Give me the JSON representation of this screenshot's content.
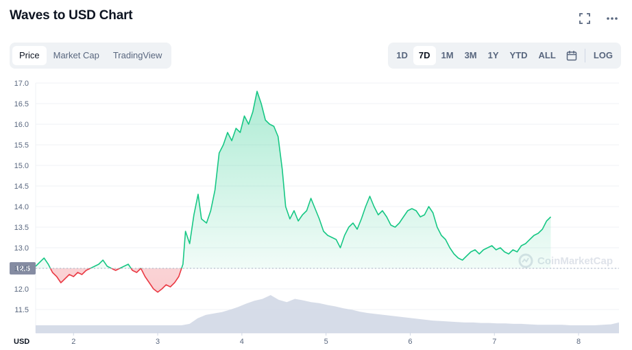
{
  "header": {
    "title": "Waves to USD Chart"
  },
  "tabs": [
    "Price",
    "Market Cap",
    "TradingView"
  ],
  "ranges": [
    "1D",
    "7D",
    "1M",
    "3M",
    "1Y",
    "YTD",
    "ALL"
  ],
  "log_label": "LOG",
  "colors": {
    "up": "#16c784",
    "down": "#ea3943",
    "volume": "#cfd6e4",
    "grid": "#eff2f5",
    "label_bg": "#858ca2"
  },
  "icons": [
    "fullscreen-icon",
    "more-icon",
    "calendar-icon",
    "coinmarketcap-logo-icon"
  ],
  "watermark": "CoinMarketCap",
  "chart_data": {
    "type": "area",
    "ylim": [
      11.2,
      17.2
    ],
    "xlim": [
      1.55,
      8.48
    ],
    "y_ticks": [
      "17.0",
      "16.5",
      "16.0",
      "15.5",
      "15.0",
      "14.5",
      "14.0",
      "13.5",
      "13.0",
      "12.5",
      "12.0",
      "11.5"
    ],
    "x_ticks": [
      2,
      3,
      4,
      5,
      6,
      7,
      8
    ],
    "x_tick_labels": [
      "2",
      "3",
      "4",
      "5",
      "6",
      "7",
      "8"
    ],
    "y_unit_label": "USD",
    "reference_price": 12.5,
    "reference_label": "12.5",
    "series": [
      {
        "values": [
          [
            1.55,
            12.55
          ],
          [
            1.6,
            12.65
          ],
          [
            1.65,
            12.75
          ],
          [
            1.7,
            12.6
          ],
          [
            1.75,
            12.4
          ],
          [
            1.8,
            12.3
          ],
          [
            1.85,
            12.15
          ],
          [
            1.9,
            12.25
          ],
          [
            1.95,
            12.35
          ],
          [
            2.0,
            12.3
          ],
          [
            2.05,
            12.4
          ],
          [
            2.1,
            12.35
          ],
          [
            2.15,
            12.45
          ],
          [
            2.2,
            12.5
          ],
          [
            2.25,
            12.55
          ],
          [
            2.3,
            12.6
          ],
          [
            2.35,
            12.7
          ],
          [
            2.4,
            12.55
          ],
          [
            2.45,
            12.5
          ],
          [
            2.5,
            12.45
          ],
          [
            2.55,
            12.5
          ],
          [
            2.6,
            12.55
          ],
          [
            2.65,
            12.6
          ],
          [
            2.7,
            12.45
          ],
          [
            2.75,
            12.4
          ],
          [
            2.8,
            12.5
          ],
          [
            2.85,
            12.3
          ],
          [
            2.9,
            12.15
          ],
          [
            2.95,
            12.0
          ],
          [
            3.0,
            11.92
          ],
          [
            3.05,
            12.0
          ],
          [
            3.1,
            12.1
          ],
          [
            3.15,
            12.05
          ],
          [
            3.2,
            12.15
          ],
          [
            3.25,
            12.3
          ],
          [
            3.3,
            12.6
          ],
          [
            3.33,
            13.4
          ],
          [
            3.38,
            13.1
          ],
          [
            3.43,
            13.8
          ],
          [
            3.48,
            14.3
          ],
          [
            3.52,
            13.7
          ],
          [
            3.58,
            13.6
          ],
          [
            3.63,
            13.9
          ],
          [
            3.68,
            14.4
          ],
          [
            3.73,
            15.3
          ],
          [
            3.78,
            15.5
          ],
          [
            3.83,
            15.8
          ],
          [
            3.88,
            15.6
          ],
          [
            3.93,
            15.9
          ],
          [
            3.98,
            15.8
          ],
          [
            4.03,
            16.2
          ],
          [
            4.08,
            16.0
          ],
          [
            4.13,
            16.3
          ],
          [
            4.18,
            16.8
          ],
          [
            4.23,
            16.5
          ],
          [
            4.28,
            16.1
          ],
          [
            4.33,
            16.0
          ],
          [
            4.38,
            15.95
          ],
          [
            4.43,
            15.7
          ],
          [
            4.48,
            14.9
          ],
          [
            4.52,
            14.0
          ],
          [
            4.57,
            13.7
          ],
          [
            4.62,
            13.9
          ],
          [
            4.67,
            13.65
          ],
          [
            4.72,
            13.8
          ],
          [
            4.77,
            13.9
          ],
          [
            4.82,
            14.2
          ],
          [
            4.87,
            13.95
          ],
          [
            4.92,
            13.7
          ],
          [
            4.97,
            13.4
          ],
          [
            5.02,
            13.3
          ],
          [
            5.07,
            13.25
          ],
          [
            5.12,
            13.2
          ],
          [
            5.17,
            13.0
          ],
          [
            5.22,
            13.3
          ],
          [
            5.27,
            13.5
          ],
          [
            5.32,
            13.6
          ],
          [
            5.37,
            13.45
          ],
          [
            5.42,
            13.7
          ],
          [
            5.47,
            14.0
          ],
          [
            5.52,
            14.25
          ],
          [
            5.57,
            14.0
          ],
          [
            5.62,
            13.8
          ],
          [
            5.67,
            13.9
          ],
          [
            5.72,
            13.75
          ],
          [
            5.77,
            13.55
          ],
          [
            5.82,
            13.5
          ],
          [
            5.87,
            13.6
          ],
          [
            5.92,
            13.75
          ],
          [
            5.97,
            13.9
          ],
          [
            6.02,
            13.95
          ],
          [
            6.07,
            13.9
          ],
          [
            6.12,
            13.75
          ],
          [
            6.17,
            13.8
          ],
          [
            6.22,
            14.0
          ],
          [
            6.27,
            13.85
          ],
          [
            6.32,
            13.5
          ],
          [
            6.37,
            13.3
          ],
          [
            6.42,
            13.2
          ],
          [
            6.47,
            13.0
          ],
          [
            6.52,
            12.85
          ],
          [
            6.57,
            12.75
          ],
          [
            6.62,
            12.7
          ],
          [
            6.67,
            12.8
          ],
          [
            6.72,
            12.9
          ],
          [
            6.77,
            12.95
          ],
          [
            6.82,
            12.85
          ],
          [
            6.87,
            12.95
          ],
          [
            6.92,
            13.0
          ],
          [
            6.97,
            13.05
          ],
          [
            7.02,
            12.95
          ],
          [
            7.07,
            13.0
          ],
          [
            7.12,
            12.9
          ],
          [
            7.17,
            12.85
          ],
          [
            7.22,
            12.95
          ],
          [
            7.27,
            12.9
          ],
          [
            7.32,
            13.05
          ],
          [
            7.37,
            13.1
          ],
          [
            7.42,
            13.2
          ],
          [
            7.47,
            13.3
          ],
          [
            7.52,
            13.35
          ],
          [
            7.57,
            13.45
          ],
          [
            7.62,
            13.65
          ],
          [
            7.67,
            13.75
          ]
        ]
      }
    ],
    "volume": [
      1,
      1,
      1,
      1,
      1,
      1,
      1,
      1,
      1,
      1,
      1,
      1,
      1,
      1,
      1,
      1,
      1,
      1,
      1,
      1.3,
      2.5,
      3.2,
      3.5,
      3.8,
      4.3,
      4.9,
      5.6,
      6.2,
      6.6,
      7.4,
      6.4,
      5.9,
      6.6,
      6.3,
      5.9,
      5.7,
      5.3,
      5.0,
      4.6,
      4.3,
      3.9,
      3.6,
      3.4,
      3.2,
      3.0,
      2.8,
      2.6,
      2.4,
      2.2,
      2.0,
      1.9,
      1.8,
      1.7,
      1.6,
      1.6,
      1.5,
      1.5,
      1.4,
      1.4,
      1.3,
      1.3,
      1.2,
      1.1,
      1.1,
      1.1,
      1.1,
      1.0,
      1.0,
      1.0,
      1.0,
      1.1,
      1.2,
      1.6
    ],
    "volume_scale_note": ""
  }
}
